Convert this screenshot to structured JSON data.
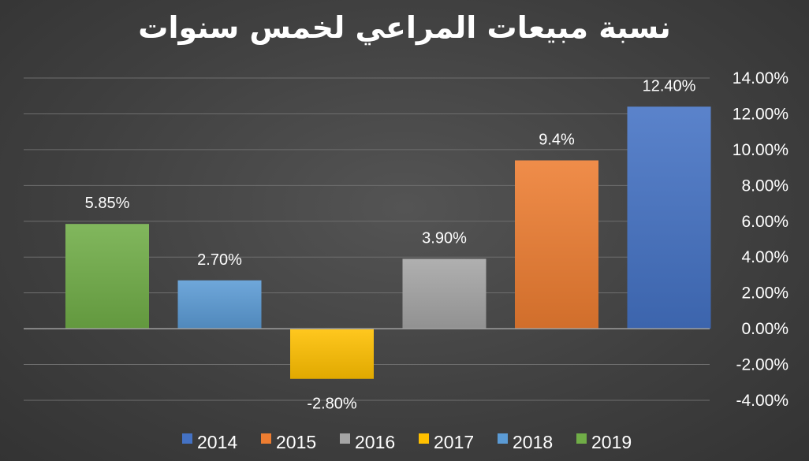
{
  "chart_data": {
    "type": "bar",
    "title": "نسبة مبيعات المراعي لخمس  سنوات",
    "orientation": "right-to-left",
    "categories": [
      "2019",
      "2018",
      "2017",
      "2016",
      "2015",
      "2014"
    ],
    "values": [
      5.85,
      2.7,
      -2.8,
      3.9,
      9.4,
      12.4
    ],
    "data_labels": [
      "5.85%",
      "2.70%",
      "-2.80%",
      "3.90%",
      "9.4%",
      "12.40%"
    ],
    "colors": [
      "#70ad47",
      "#5b9bd5",
      "#ffc000",
      "#a5a5a5",
      "#ed7d31",
      "#4472c4"
    ],
    "ylim": [
      -4,
      14
    ],
    "yticks": [
      14,
      12,
      10,
      8,
      6,
      4,
      2,
      0,
      -2,
      -4
    ],
    "ytick_labels": [
      "14.00%",
      "12.00%",
      "10.00%",
      "8.00%",
      "6.00%",
      "4.00%",
      "2.00%",
      "0.00%",
      "-2.00%",
      "-4.00%"
    ],
    "y_axis_position": "right",
    "grid": true,
    "legend": {
      "position": "bottom",
      "entries": [
        {
          "label": "2014",
          "color": "#4472c4"
        },
        {
          "label": "2015",
          "color": "#ed7d31"
        },
        {
          "label": "2016",
          "color": "#a5a5a5"
        },
        {
          "label": "2017",
          "color": "#ffc000"
        },
        {
          "label": "2018",
          "color": "#5b9bd5"
        },
        {
          "label": "2019",
          "color": "#70ad47"
        }
      ]
    }
  }
}
